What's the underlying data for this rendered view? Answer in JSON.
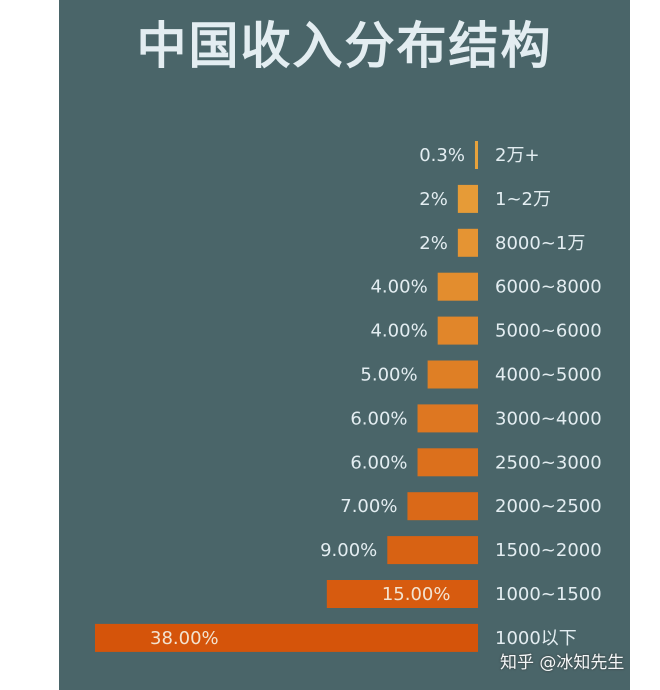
{
  "chart_data": {
    "type": "bar",
    "orientation": "horizontal",
    "title": "中国收入分布结构",
    "categories": [
      "2万+",
      "1~2万",
      "8000~1万",
      "6000~8000",
      "5000~6000",
      "4000~5000",
      "3000~4000",
      "2500~3000",
      "2000~2500",
      "1500~2000",
      "1000~1500",
      "1000以下"
    ],
    "values": [
      0.3,
      2,
      2,
      4,
      4,
      5,
      6,
      6,
      7,
      9,
      15,
      38
    ],
    "data_labels": [
      "0.3%",
      "2%",
      "2%",
      "4.00%",
      "4.00%",
      "5.00%",
      "6.00%",
      "6.00%",
      "7.00%",
      "9.00%",
      "15.00%",
      "38.00%"
    ],
    "unit": "%",
    "xlim": [
      0,
      38
    ],
    "grid": false,
    "colors": {
      "background": "#4a6569",
      "bar_light": "#e8a23c",
      "bar_dark": "#d5540a",
      "text": "#e3edf1"
    }
  },
  "watermark": "知乎 @冰知先生"
}
